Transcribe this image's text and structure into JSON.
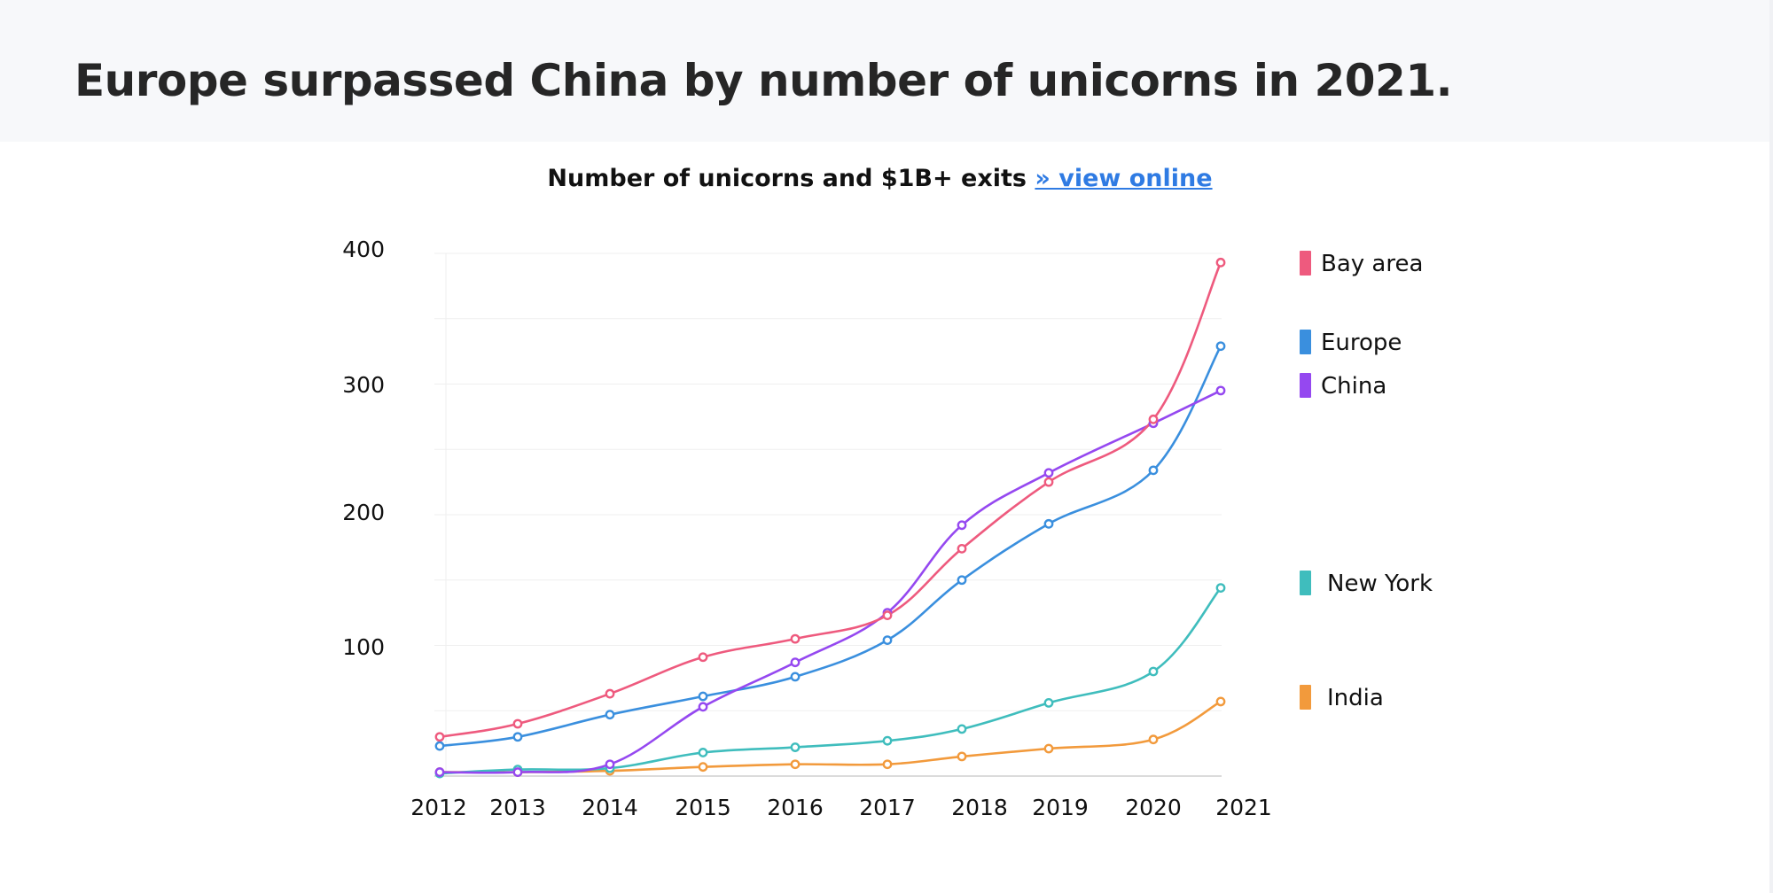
{
  "page": {
    "headline": "Europe surpassed China by number of unicorns in 2021."
  },
  "chart_data": {
    "type": "line",
    "title": "Number of unicorns and $1B+ exits",
    "title_link": "» view online",
    "xlabel": "",
    "ylabel": "",
    "x": [
      2012,
      2013,
      2014,
      2015,
      2016,
      2017,
      2018,
      2019,
      2020,
      2021
    ],
    "x_tick_labels": [
      "2012",
      "2013",
      "2014",
      "2015",
      "2016",
      "2017",
      "2018",
      "2019",
      "2020",
      "2021"
    ],
    "y_ticks": [
      100,
      200,
      300,
      400
    ],
    "y_tick_labels": [
      "100",
      "200",
      "300",
      "400"
    ],
    "ylim": [
      0,
      400
    ],
    "grid": true,
    "legend_position": "right, beside each line end",
    "series": [
      {
        "name": "Bay area",
        "color": "#ee5a7e",
        "values": [
          30,
          40,
          63,
          91,
          105,
          123,
          174,
          225,
          273,
          393
        ]
      },
      {
        "name": "Europe",
        "color": "#3a8fde",
        "values": [
          23,
          30,
          47,
          61,
          76,
          104,
          150,
          193,
          234,
          329
        ]
      },
      {
        "name": "China",
        "color": "#9548f0",
        "values": [
          3,
          3,
          9,
          53,
          87,
          125,
          192,
          232,
          270,
          295
        ]
      },
      {
        "name": "New York",
        "color": "#3fbdbd",
        "values": [
          2,
          5,
          6,
          18,
          22,
          27,
          36,
          56,
          80,
          144
        ]
      },
      {
        "name": "India",
        "color": "#f29a3c",
        "values": [
          3,
          3,
          4,
          7,
          9,
          9,
          15,
          21,
          28,
          57
        ]
      }
    ]
  }
}
